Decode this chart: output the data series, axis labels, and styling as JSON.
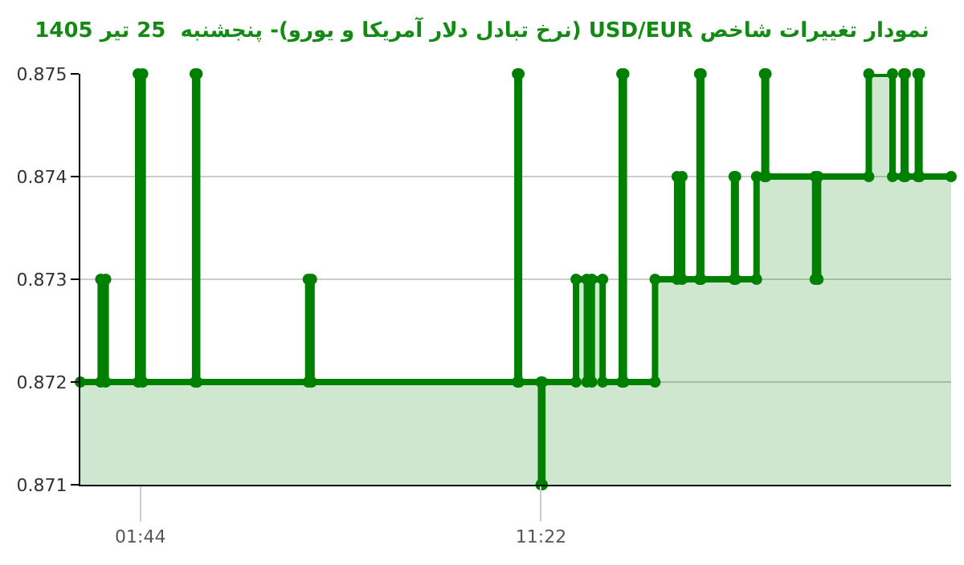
{
  "chart_data": {
    "type": "area",
    "title": "نمودار تغییرات شاخص USD/EUR (نرخ تبادل دلار آمریکا و یورو)- پنجشنبه  25 تیر 1405",
    "x": [
      0.29,
      0.78,
      0.78,
      0.9,
      0.9,
      1.68,
      1.68,
      1.79,
      1.79,
      3.05,
      3.05,
      3.1,
      3.1,
      5.77,
      5.77,
      5.85,
      5.85,
      10.8,
      10.8,
      10.84,
      10.84,
      11.367,
      11.367,
      11.4,
      11.4,
      12.21,
      12.21,
      12.47,
      12.47,
      12.59,
      12.59,
      12.85,
      12.85,
      13.31,
      13.31,
      13.36,
      13.36,
      14.11,
      14.11,
      14.64,
      14.64,
      14.76,
      14.76,
      15.18,
      15.18,
      15.22,
      15.22,
      16.01,
      16.01,
      16.05,
      16.05,
      16.55,
      16.55,
      16.74,
      16.74,
      16.78,
      16.78,
      17.96,
      17.96,
      18.03,
      18.03,
      19.25,
      19.25,
      19.82,
      19.82,
      20.09,
      20.09,
      20.13,
      20.13,
      20.43,
      20.43,
      20.47,
      20.47,
      21.23
    ],
    "series": [
      {
        "color": "#008000",
        "values": [
          0.872,
          0.872,
          0.873,
          0.873,
          0.872,
          0.872,
          0.875,
          0.875,
          0.872,
          0.872,
          0.875,
          0.875,
          0.872,
          0.872,
          0.873,
          0.873,
          0.872,
          0.872,
          0.875,
          0.875,
          0.872,
          0.872,
          0.871,
          0.871,
          0.872,
          0.872,
          0.873,
          0.873,
          0.872,
          0.872,
          0.873,
          0.873,
          0.872,
          0.872,
          0.875,
          0.875,
          0.872,
          0.872,
          0.873,
          0.873,
          0.874,
          0.874,
          0.873,
          0.873,
          0.875,
          0.875,
          0.873,
          0.873,
          0.874,
          0.874,
          0.873,
          0.873,
          0.874,
          0.874,
          0.875,
          0.875,
          0.874,
          0.874,
          0.873,
          0.873,
          0.874,
          0.874,
          0.875,
          0.875,
          0.874,
          0.874,
          0.875,
          0.875,
          0.874,
          0.874,
          0.875,
          0.875,
          0.874,
          0.874
        ]
      }
    ],
    "xlim": [
      0.29,
      21.23
    ],
    "xticks": [
      {
        "value": 1.733,
        "label": "01:44"
      },
      {
        "value": 11.367,
        "label": "11:22"
      }
    ],
    "ylim": [
      0.871,
      0.875
    ],
    "yticks": [
      0.871,
      0.872,
      0.873,
      0.874,
      0.875
    ],
    "grid": "y",
    "marker": "circle",
    "line_style": "solid"
  }
}
